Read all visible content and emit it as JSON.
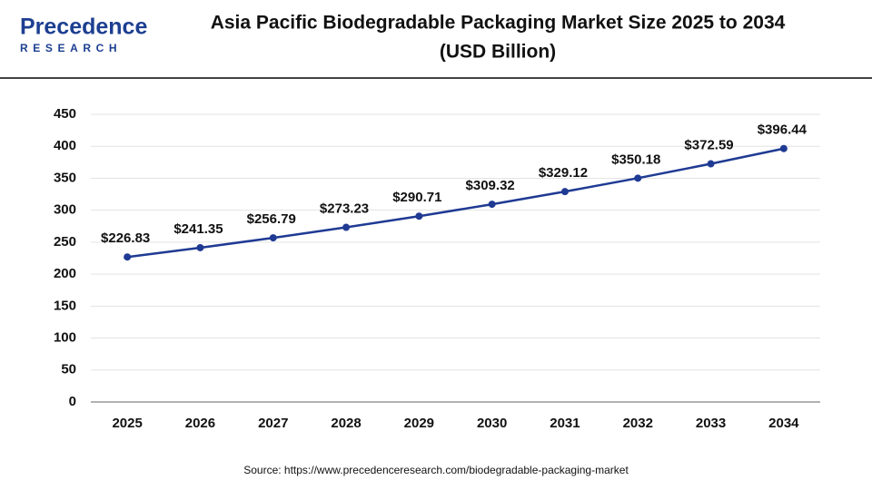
{
  "logo": {
    "name": "Precedence",
    "tagline": "RESEARCH"
  },
  "chart_data": {
    "type": "line",
    "title": "Asia Pacific Biodegradable Packaging Market Size 2025 to 2034",
    "subtitle": "(USD Billion)",
    "source": "Source: https://www.precedenceresearch.com/biodegradable-packaging-market",
    "categories": [
      "2025",
      "2026",
      "2027",
      "2028",
      "2029",
      "2030",
      "2031",
      "2032",
      "2033",
      "2034"
    ],
    "series": [
      {
        "color": "#1f3a93",
        "values": [
          226.83,
          241.35,
          256.79,
          273.23,
          290.71,
          309.32,
          329.12,
          350.18,
          372.59,
          396.44
        ],
        "value_labels": [
          "$226.83",
          "$241.35",
          "$256.79",
          "$273.23",
          "$290.71",
          "$309.32",
          "$329.12",
          "$350.18",
          "$372.59",
          "$396.44"
        ]
      }
    ],
    "ylim": [
      0,
      450
    ],
    "yticks": [
      0,
      50,
      100,
      150,
      200,
      250,
      300,
      350,
      400,
      450
    ],
    "grid": true
  }
}
